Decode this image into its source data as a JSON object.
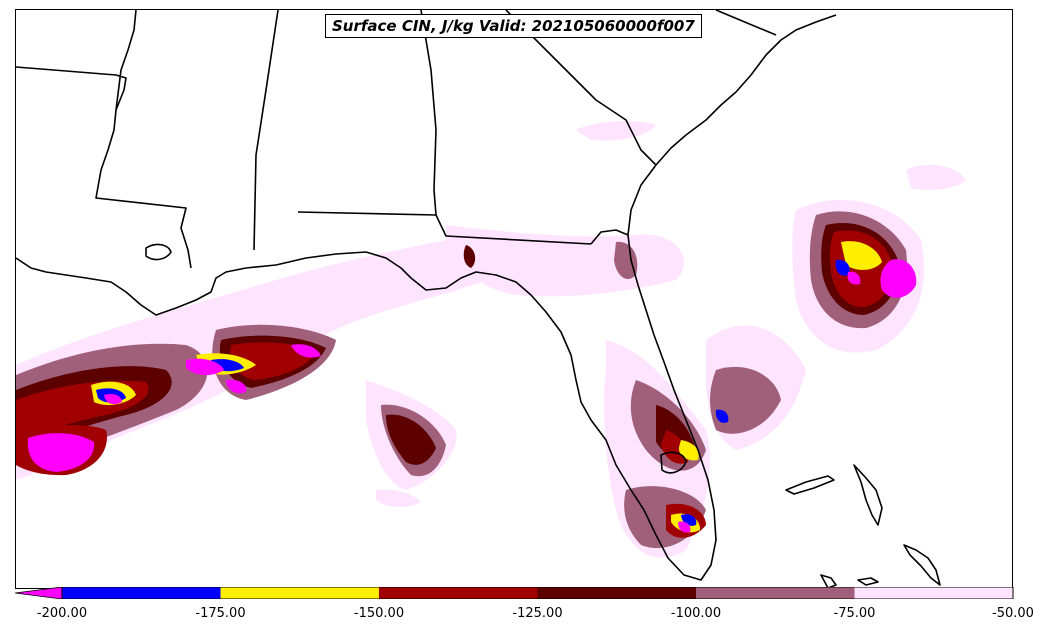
{
  "title": "Surface CIN, J/kg Valid: 202105060000f007",
  "colorbar": {
    "extend": "min",
    "tick_labels": [
      "-200.00",
      "-175.00",
      "-150.00",
      "-125.00",
      "-100.00",
      "-75.00",
      "-50.00"
    ],
    "bins": [
      {
        "from": -200,
        "to": -175,
        "color": "#0000ff"
      },
      {
        "from": -175,
        "to": -150,
        "color": "#ffee00"
      },
      {
        "from": -150,
        "to": -125,
        "color": "#a00000"
      },
      {
        "from": -125,
        "to": -100,
        "color": "#5c0000"
      },
      {
        "from": -100,
        "to": -75,
        "color": "#a0607a"
      },
      {
        "from": -75,
        "to": -50,
        "color": "#ffe4ff"
      }
    ],
    "below_min_color": "#ff00ff"
  }
}
